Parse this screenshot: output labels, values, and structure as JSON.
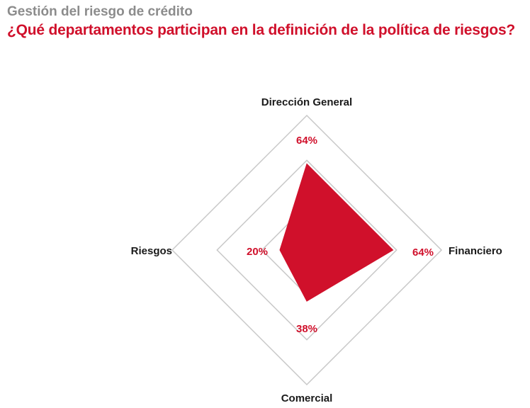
{
  "header": {
    "subtitle": "Gestión del riesgo de crédito",
    "title": "¿Qué departamentos participan en la definición de la política de riesgos?"
  },
  "colors": {
    "accent": "#d0102b",
    "grid": "#c8c8c8",
    "axis_label": "#1a1a1a",
    "subtitle": "#8c8c8c"
  },
  "chart_data": {
    "type": "radar",
    "title": "¿Qué departamentos participan en la definición de la política de riesgos?",
    "subtitle": "Gestión del riesgo de crédito",
    "categories": [
      "Dirección General",
      "Financiero",
      "Comercial",
      "Riesgos"
    ],
    "values": [
      64,
      64,
      38,
      20
    ],
    "value_labels": [
      "64%",
      "64%",
      "38%",
      "20%"
    ],
    "unit": "%",
    "rlim": [
      0,
      100
    ],
    "grid_levels": 3,
    "fill_color": "#d0102b"
  }
}
